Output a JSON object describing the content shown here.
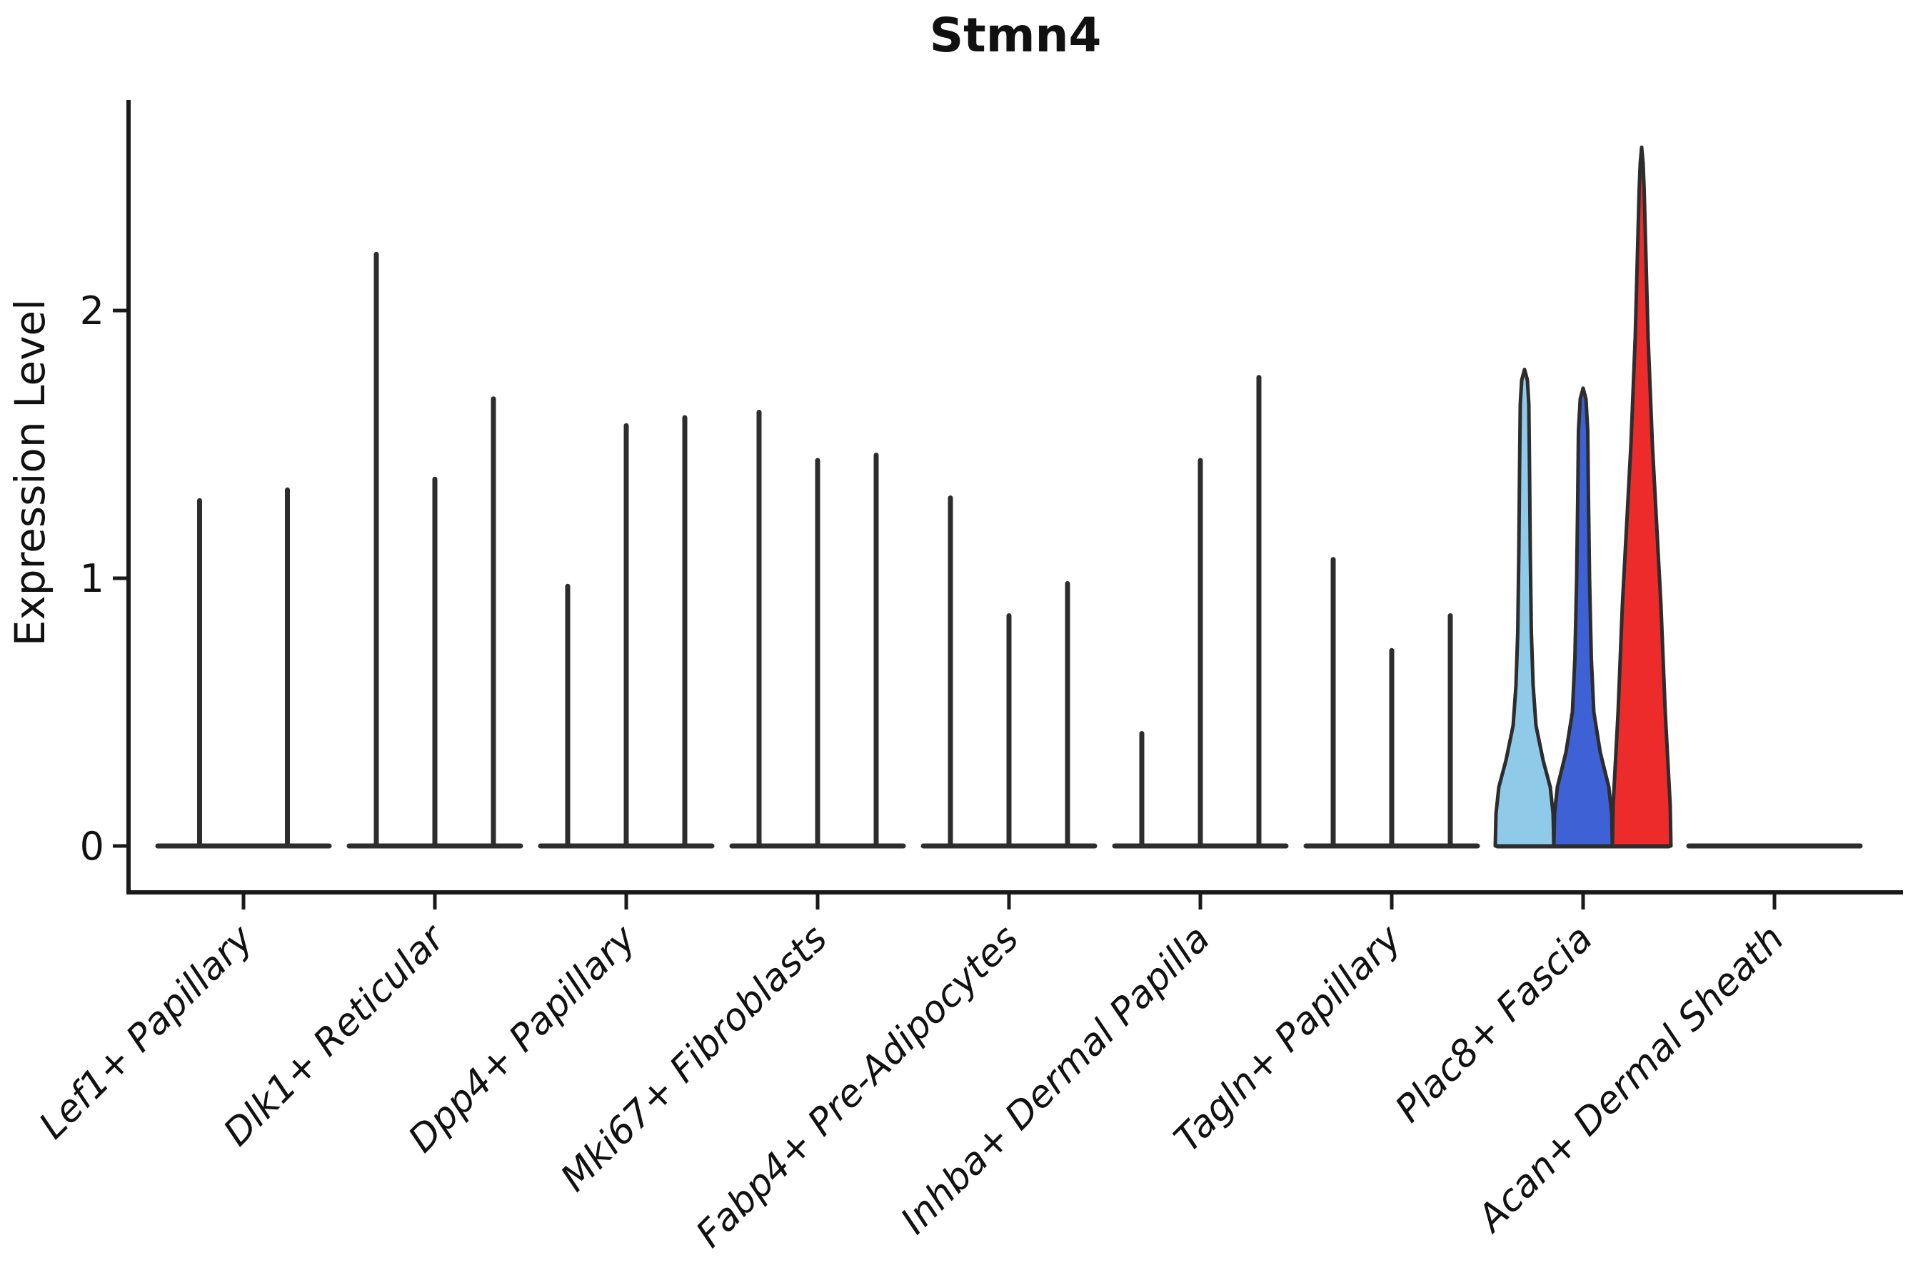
{
  "chart_data": {
    "type": "violin",
    "title": "Stmn4",
    "ylabel": "Expression Level",
    "xlabel": "",
    "ytick_labels": [
      "0",
      "1",
      "2"
    ],
    "ytick_values": [
      0,
      1,
      2
    ],
    "ylim": [
      -0.17,
      2.75
    ],
    "grid": false,
    "legend": "none",
    "style": {
      "background": "#ffffff",
      "spine_color": "#1a1a1a",
      "violin_outline_color": "#2d2d2d",
      "text_color": "#111111",
      "highlight_fills": [
        "#8FCBE9",
        "#3E62D6",
        "#EE2B2B"
      ]
    },
    "categories": [
      {
        "label": "Lef1+ Papillary",
        "violins": [
          {
            "max": 1.29,
            "fill": "none"
          },
          {
            "max": 1.33,
            "fill": "none"
          }
        ]
      },
      {
        "label": "Dlk1+ Reticular",
        "violins": [
          {
            "max": 2.21,
            "fill": "none"
          },
          {
            "max": 1.37,
            "fill": "none"
          },
          {
            "max": 1.67,
            "fill": "none"
          }
        ]
      },
      {
        "label": "Dpp4+ Papillary",
        "violins": [
          {
            "max": 0.97,
            "fill": "none"
          },
          {
            "max": 1.57,
            "fill": "none"
          },
          {
            "max": 1.6,
            "fill": "none"
          }
        ]
      },
      {
        "label": "Mki67+ Fibroblasts",
        "violins": [
          {
            "max": 1.62,
            "fill": "none"
          },
          {
            "max": 1.44,
            "fill": "none"
          },
          {
            "max": 1.46,
            "fill": "none"
          }
        ]
      },
      {
        "label": "Fabp4+ Pre-Adipocytes",
        "violins": [
          {
            "max": 1.3,
            "fill": "none"
          },
          {
            "max": 0.86,
            "fill": "none"
          },
          {
            "max": 0.98,
            "fill": "none"
          }
        ]
      },
      {
        "label": "Inhba+ Dermal Papilla",
        "violins": [
          {
            "max": 0.42,
            "fill": "none"
          },
          {
            "max": 1.44,
            "fill": "none"
          },
          {
            "max": 1.75,
            "fill": "none"
          }
        ]
      },
      {
        "label": "Tagln+ Papillary",
        "violins": [
          {
            "max": 1.07,
            "fill": "none"
          },
          {
            "max": 0.73,
            "fill": "none"
          },
          {
            "max": 0.86,
            "fill": "none"
          }
        ]
      },
      {
        "label": "Plac8+ Fascia",
        "violins": [
          {
            "max": 1.78,
            "fill": "#8FCBE9",
            "profile": [
              [
                0,
                41
              ],
              [
                0.12,
                40
              ],
              [
                0.22,
                36
              ],
              [
                0.32,
                26
              ],
              [
                0.45,
                16
              ],
              [
                0.6,
                12
              ],
              [
                0.8,
                9.5
              ],
              [
                1.1,
                8
              ],
              [
                1.4,
                7
              ],
              [
                1.65,
                6
              ],
              [
                1.74,
                4
              ],
              [
                1.78,
                0
              ]
            ]
          },
          {
            "max": 1.71,
            "fill": "#3E62D6",
            "profile": [
              [
                0,
                41
              ],
              [
                0.12,
                40
              ],
              [
                0.22,
                36
              ],
              [
                0.35,
                24
              ],
              [
                0.5,
                15
              ],
              [
                0.7,
                11.5
              ],
              [
                1.0,
                9
              ],
              [
                1.3,
                7.5
              ],
              [
                1.55,
                6.5
              ],
              [
                1.67,
                4
              ],
              [
                1.71,
                0
              ]
            ]
          },
          {
            "max": 2.61,
            "fill": "#EE2B2B",
            "profile": [
              [
                0,
                41
              ],
              [
                0.15,
                40
              ],
              [
                0.3,
                37
              ],
              [
                0.5,
                33
              ],
              [
                0.7,
                30
              ],
              [
                0.9,
                27
              ],
              [
                1.1,
                23
              ],
              [
                1.3,
                19
              ],
              [
                1.5,
                15
              ],
              [
                1.7,
                12
              ],
              [
                1.9,
                9
              ],
              [
                2.1,
                7
              ],
              [
                2.3,
                5
              ],
              [
                2.45,
                3.5
              ],
              [
                2.55,
                2
              ],
              [
                2.61,
                0
              ]
            ]
          }
        ]
      },
      {
        "label": "Acan+ Dermal Sheath",
        "violins": [
          {
            "max": 0,
            "fill": "none"
          },
          {
            "max": 0,
            "fill": "none"
          },
          {
            "max": 0,
            "fill": "none"
          }
        ]
      }
    ]
  }
}
